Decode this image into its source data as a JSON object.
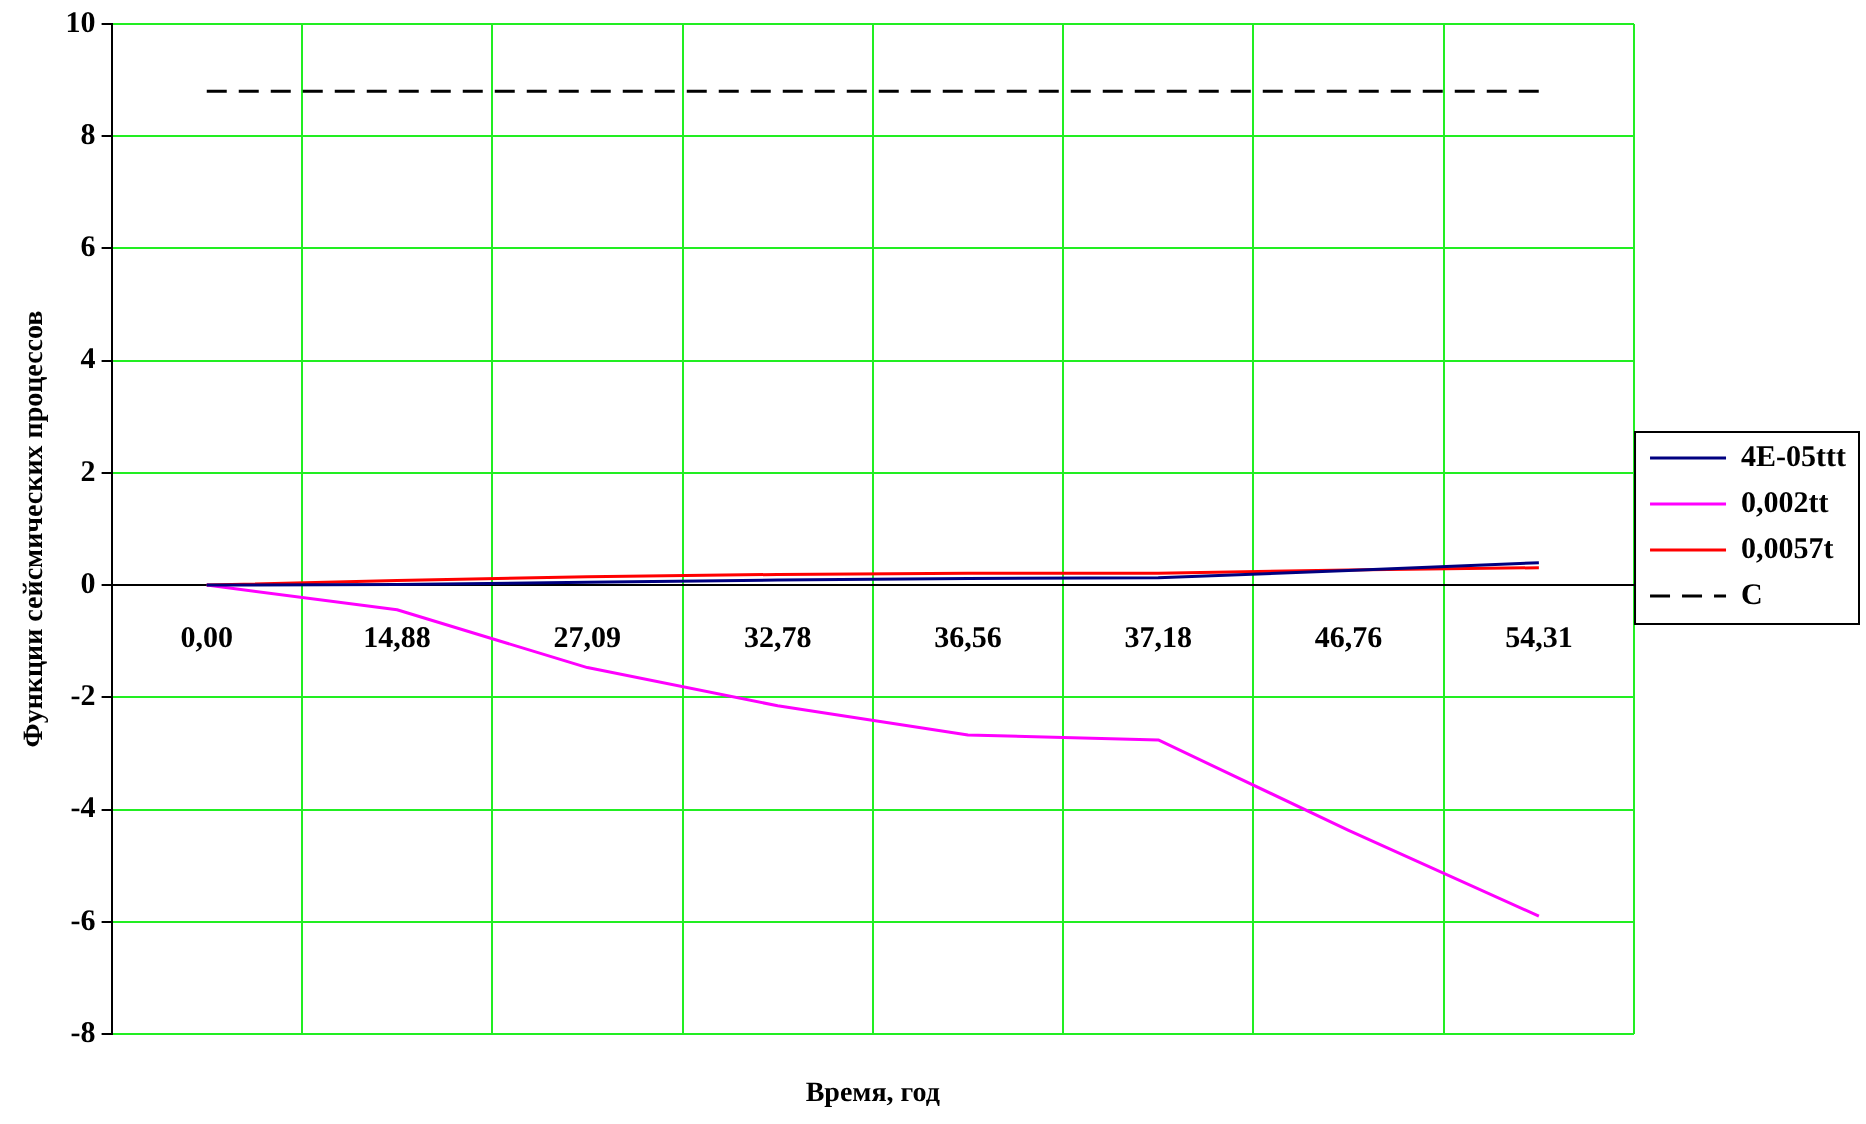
{
  "chart_data": {
    "type": "line",
    "xlabel": "Время, год",
    "ylabel": "Функции сейсмических процессов",
    "categories": [
      "0,00",
      "14,88",
      "27,09",
      "32,78",
      "36,56",
      "37,18",
      "46,76",
      "54,31"
    ],
    "series": [
      {
        "name": "4E-05ttt",
        "color": "#000080",
        "values": [
          0,
          0.01,
          0.05,
          0.09,
          0.12,
          0.13,
          0.26,
          0.4
        ]
      },
      {
        "name": "0,002tt",
        "color": "#ff00ff",
        "values": [
          0,
          -0.44,
          -1.47,
          -2.15,
          -2.67,
          -2.76,
          -4.37,
          -5.9
        ]
      },
      {
        "name": "0,0057t",
        "color": "#ff0000",
        "values": [
          0,
          0.08,
          0.15,
          0.19,
          0.21,
          0.21,
          0.27,
          0.31
        ]
      },
      {
        "name": "C",
        "color": "#000000",
        "line_style": "dashed",
        "values": [
          8.8,
          8.8,
          8.8,
          8.8,
          8.8,
          8.8,
          8.8,
          8.8
        ]
      }
    ],
    "ylim": [
      -8,
      10
    ],
    "yticks": [
      -8,
      -6,
      -4,
      -2,
      0,
      2,
      4,
      6,
      8,
      10
    ],
    "grid": true,
    "legend": "right",
    "marker": "none",
    "line_style": "solid"
  }
}
